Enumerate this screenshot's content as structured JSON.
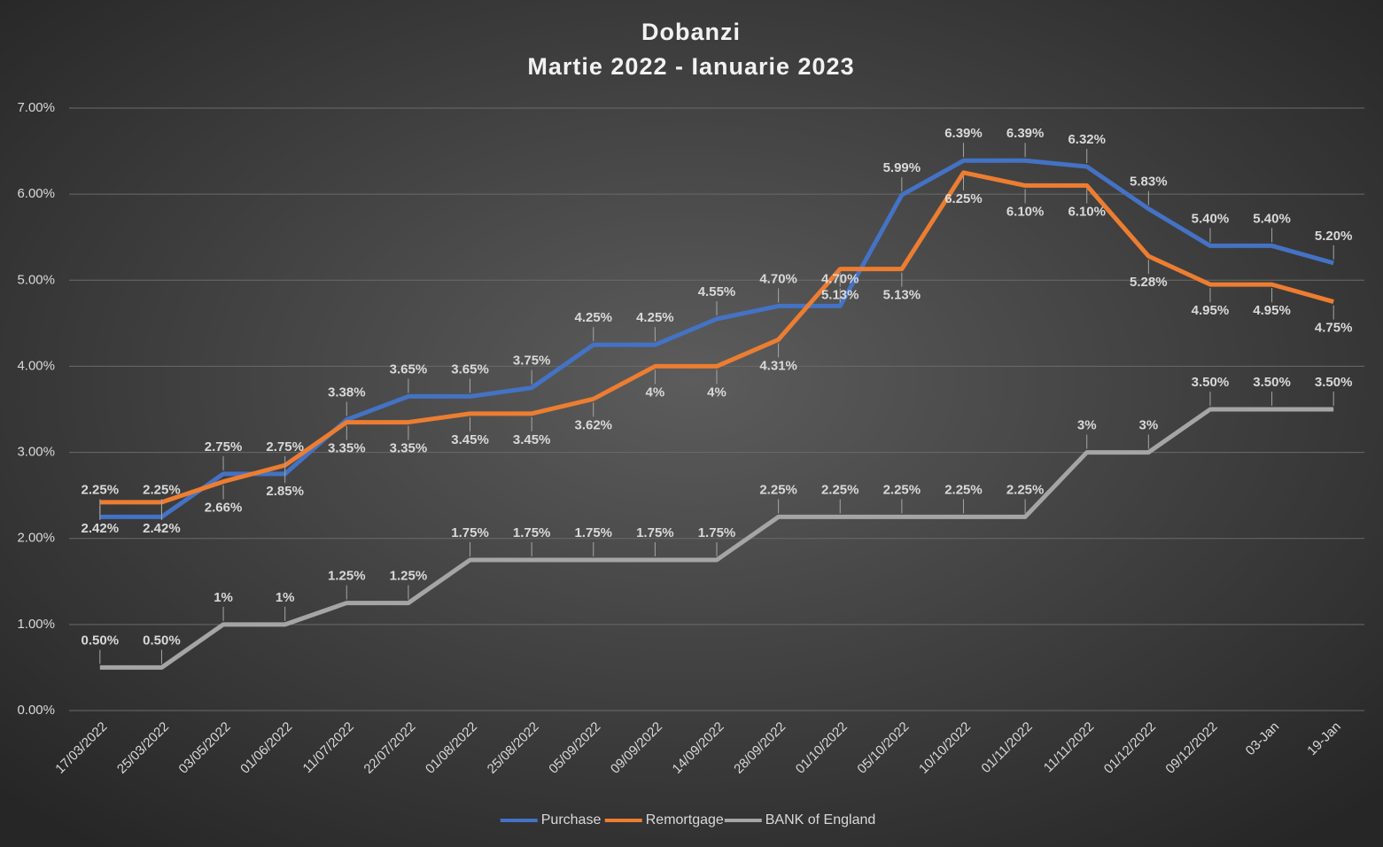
{
  "chart_data": {
    "type": "line",
    "title": "Dobanzi",
    "subtitle": "Martie 2022 - Ianuarie 2023",
    "categories": [
      "17/03/2022",
      "25/03/2022",
      "03/05/2022",
      "01/06/2022",
      "11/07/2022",
      "22/07/2022",
      "01/08/2022",
      "25/08/2022",
      "05/09/2022",
      "09/09/2022",
      "14/09/2022",
      "28/09/2022",
      "01/10/2022",
      "05/10/2022",
      "10/10/2022",
      "01/11/2022",
      "11/11/2022",
      "01/12/2022",
      "09/12/2022",
      "03-Jan",
      "19-Jan"
    ],
    "series": [
      {
        "name": "Purchase",
        "color": "#4472c4",
        "label_side": "above",
        "values": [
          2.25,
          2.25,
          2.75,
          2.75,
          3.38,
          3.65,
          3.65,
          3.75,
          4.25,
          4.25,
          4.55,
          4.7,
          4.7,
          5.99,
          6.39,
          6.39,
          6.32,
          5.83,
          5.4,
          5.4,
          5.2
        ],
        "value_labels": [
          "2.25%",
          "2.25%",
          "2.75%",
          "2.75%",
          "3.38%",
          "3.65%",
          "3.65%",
          "3.75%",
          "4.25%",
          "4.25%",
          "4.55%",
          "4.70%",
          "4.70%",
          "5.99%",
          "6.39%",
          "6.39%",
          "6.32%",
          "5.83%",
          "5.40%",
          "5.40%",
          "5.20%"
        ]
      },
      {
        "name": "Remortgage",
        "color": "#ed7d31",
        "label_side": "below",
        "values": [
          2.42,
          2.42,
          2.66,
          2.85,
          3.35,
          3.35,
          3.45,
          3.45,
          3.62,
          4,
          4,
          4.31,
          5.13,
          5.13,
          6.25,
          6.1,
          6.1,
          5.28,
          4.95,
          4.95,
          4.75
        ],
        "value_labels": [
          "2.42%",
          "2.42%",
          "2.66%",
          "2.85%",
          "3.35%",
          "3.35%",
          "3.45%",
          "3.45%",
          "3.62%",
          "4%",
          "4%",
          "4.31%",
          "5.13%",
          "5.13%",
          "6.25%",
          "6.10%",
          "6.10%",
          "5.28%",
          "4.95%",
          "4.95%",
          "4.75%"
        ]
      },
      {
        "name": "BANK of England",
        "color": "#a5a5a5",
        "label_side": "above",
        "values": [
          0.5,
          0.5,
          1,
          1,
          1.25,
          1.25,
          1.75,
          1.75,
          1.75,
          1.75,
          1.75,
          2.25,
          2.25,
          2.25,
          2.25,
          2.25,
          3,
          3,
          3.5,
          3.5,
          3.5
        ],
        "value_labels": [
          "0.50%",
          "0.50%",
          "1%",
          "1%",
          "1.25%",
          "1.25%",
          "1.75%",
          "1.75%",
          "1.75%",
          "1.75%",
          "1.75%",
          "2.25%",
          "2.25%",
          "2.25%",
          "2.25%",
          "2.25%",
          "3%",
          "3%",
          "3.50%",
          "3.50%",
          "3.50%"
        ]
      }
    ],
    "ylim": [
      0,
      7
    ],
    "yticks": [
      {
        "value": 0,
        "label": "0.00%"
      },
      {
        "value": 1,
        "label": "1.00%"
      },
      {
        "value": 2,
        "label": "2.00%"
      },
      {
        "value": 3,
        "label": "3.00%"
      },
      {
        "value": 4,
        "label": "4.00%"
      },
      {
        "value": 5,
        "label": "5.00%"
      },
      {
        "value": 6,
        "label": "6.00%"
      },
      {
        "value": 7,
        "label": "7.00%"
      }
    ],
    "grid": true,
    "legend": "bottom"
  }
}
